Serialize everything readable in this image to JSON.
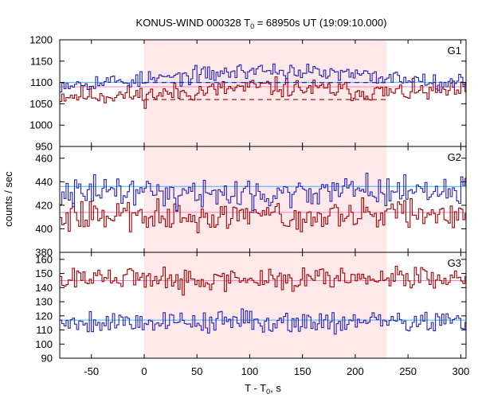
{
  "chart_data": {
    "type": "line",
    "title_main": "KONUS-WIND 000328 T",
    "title_sub": "0",
    "title_rest": " = 68950s UT (19:09:10.000)",
    "xlabel_main": "T - T",
    "xlabel_sub": "0",
    "xlabel_rest": ", s",
    "ylabel": "counts / sec",
    "xlim": [
      -80,
      305
    ],
    "xticks": [
      -50,
      0,
      50,
      100,
      150,
      200,
      250,
      300
    ],
    "interval": [
      0,
      230
    ],
    "colors": {
      "red": "#a00000",
      "blue": "#2020c0",
      "red_level": "#ff80c0",
      "blue_level": "#40b0ff",
      "band": "#ffe8ea"
    },
    "panels": [
      {
        "label": "G1",
        "ylim": [
          950,
          1200
        ],
        "yticks": [
          950,
          1000,
          1050,
          1100,
          1150,
          1200
        ],
        "blue_level": 1100,
        "red_level": 1090,
        "blue_dashed": {
          "x": [
            0,
            230
          ],
          "y": [
            1100,
            1100
          ]
        },
        "red_dashed": {
          "x": [
            0,
            230
          ],
          "y": [
            1060,
            1060
          ]
        },
        "blue_env": [
          [
            -80,
            1097
          ],
          [
            0,
            1106
          ],
          [
            110,
            1130
          ],
          [
            150,
            1125
          ],
          [
            230,
            1112
          ],
          [
            305,
            1100
          ]
        ],
        "red_env": [
          [
            -80,
            1070
          ],
          [
            0,
            1070
          ],
          [
            110,
            1090
          ],
          [
            230,
            1076
          ],
          [
            305,
            1080
          ]
        ],
        "blue_amp": 14,
        "red_amp": 17
      },
      {
        "label": "G2",
        "ylim": [
          380,
          470
        ],
        "yticks": [
          380,
          400,
          420,
          440,
          460
        ],
        "blue_level": 436,
        "red_level": 414,
        "blue_env": [
          [
            -80,
            432
          ],
          [
            0,
            432
          ],
          [
            100,
            430
          ],
          [
            230,
            433
          ],
          [
            305,
            432
          ]
        ],
        "red_env": [
          [
            -80,
            412
          ],
          [
            0,
            411
          ],
          [
            100,
            410
          ],
          [
            230,
            412
          ],
          [
            305,
            412
          ]
        ],
        "blue_amp": 9,
        "red_amp": 9
      },
      {
        "label": "G3",
        "ylim": [
          90,
          165
        ],
        "yticks": [
          90,
          100,
          110,
          120,
          130,
          140,
          150,
          160
        ],
        "blue_level": 117,
        "red_level": 145,
        "blue_env": [
          [
            -80,
            116
          ],
          [
            305,
            116
          ]
        ],
        "red_env": [
          [
            -80,
            146
          ],
          [
            305,
            146
          ]
        ],
        "blue_amp": 6,
        "red_amp": 6
      }
    ]
  }
}
